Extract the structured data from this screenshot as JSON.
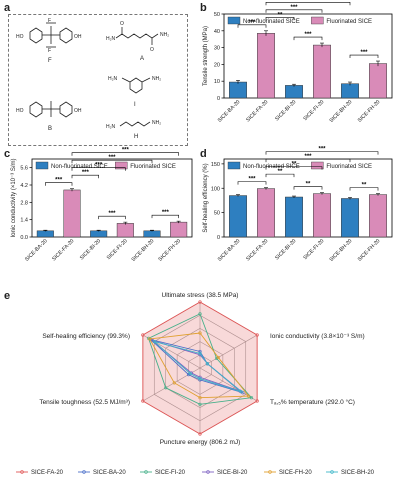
{
  "panels": {
    "a": "a",
    "b": "b",
    "c": "c",
    "d": "d",
    "e": "e"
  },
  "structures": {
    "labels": {
      "F": "F",
      "A": "A",
      "B": "B",
      "I": "I",
      "H": "H"
    },
    "groups": {
      "OH": "HO",
      "OH2": "OH",
      "CF3": "F",
      "NH2": "NH",
      "H2N": "H₂N",
      "NH2b": "NH₂",
      "O": "O"
    }
  },
  "colors": {
    "blue": "#2e7fc0",
    "pink": "#d98bb8",
    "black": "#000000"
  },
  "legend": {
    "non": "Non-fluorinated SICE",
    "flu": "Fluorinated SICE"
  },
  "chart_data": [
    {
      "id": "b",
      "type": "bar",
      "ylabel": "Tensile strength (MPa)",
      "ylim": [
        0,
        50
      ],
      "yticks": [
        0,
        10,
        20,
        30,
        40,
        50
      ],
      "categories": [
        "SICE-BA-20",
        "SICE-FA-20",
        "SICE-BI-20",
        "SICE-FI-20",
        "SICE-BH-20",
        "SICE-FH-20"
      ],
      "values": [
        9.5,
        38.5,
        7.5,
        31.5,
        8.5,
        20.5
      ],
      "errors": [
        1,
        1.5,
        0.7,
        1.2,
        1,
        1.5
      ],
      "kind": [
        "non",
        "flu",
        "non",
        "flu",
        "non",
        "flu"
      ],
      "significance": [
        {
          "from": 0,
          "to": 1,
          "label": "***",
          "level": 0
        },
        {
          "from": 1,
          "to": 2,
          "label": "**",
          "level": 1
        },
        {
          "from": 2,
          "to": 3,
          "label": "***",
          "level": 0
        },
        {
          "from": 1,
          "to": 3,
          "label": "***",
          "level": 2
        },
        {
          "from": 4,
          "to": 5,
          "label": "***",
          "level": 0
        },
        {
          "from": 1,
          "to": 4,
          "label": "***",
          "level": 3
        },
        {
          "from": 1,
          "to": 5,
          "label": "***",
          "level": 4
        }
      ]
    },
    {
      "id": "c",
      "type": "bar",
      "ylabel": "Ionic conductivity (×10⁻³ S/m)",
      "ylim": [
        0,
        6.3
      ],
      "yticks": [
        0,
        1.4,
        2.8,
        4.2,
        5.6
      ],
      "yticklabels": [
        "0.0",
        "1.4",
        "2.8",
        "4.2",
        "5.6"
      ],
      "categories": [
        "SICE-BA-20",
        "SICE-FA-20",
        "SICE-BI-20",
        "SICE-FI-20",
        "SICE-BH-20",
        "SICE-FH-20"
      ],
      "values": [
        0.5,
        3.8,
        0.5,
        1.1,
        0.5,
        1.2
      ],
      "errors": [
        0.05,
        0.1,
        0.05,
        0.1,
        0.05,
        0.08
      ],
      "kind": [
        "non",
        "flu",
        "non",
        "flu",
        "non",
        "flu"
      ],
      "significance": [
        {
          "from": 0,
          "to": 1,
          "label": "***",
          "level": 0
        },
        {
          "from": 1,
          "to": 2,
          "label": "***",
          "level": 1
        },
        {
          "from": 2,
          "to": 3,
          "label": "***",
          "level": 0
        },
        {
          "from": 1,
          "to": 3,
          "label": "***",
          "level": 2
        },
        {
          "from": 4,
          "to": 5,
          "label": "***",
          "level": 0
        },
        {
          "from": 1,
          "to": 4,
          "label": "***",
          "level": 3
        },
        {
          "from": 1,
          "to": 5,
          "label": "***",
          "level": 4
        }
      ]
    },
    {
      "id": "d",
      "type": "bar",
      "ylabel": "Self-healing efficiency (%)",
      "ylim": [
        0,
        160
      ],
      "yticks": [
        0,
        50,
        100,
        150
      ],
      "categories": [
        "SICE-BA-20",
        "SICE-FA-20",
        "SICE-BI-20",
        "SICE-FI-20",
        "SICE-BH-20",
        "SICE-FH-20"
      ],
      "values": [
        85,
        99.3,
        82,
        89,
        79,
        87
      ],
      "errors": [
        2,
        2,
        2,
        2,
        2,
        2
      ],
      "kind": [
        "non",
        "flu",
        "non",
        "flu",
        "non",
        "flu"
      ],
      "significance": [
        {
          "from": 0,
          "to": 1,
          "label": "***",
          "level": 0
        },
        {
          "from": 1,
          "to": 2,
          "label": "**",
          "level": 1
        },
        {
          "from": 2,
          "to": 3,
          "label": "**",
          "level": 0
        },
        {
          "from": 1,
          "to": 3,
          "label": "**",
          "level": 2
        },
        {
          "from": 4,
          "to": 5,
          "label": "**",
          "level": 0
        },
        {
          "from": 1,
          "to": 4,
          "label": "***",
          "level": 3
        },
        {
          "from": 1,
          "to": 5,
          "label": "***",
          "level": 4
        }
      ]
    },
    {
      "id": "e",
      "type": "radar",
      "axes": [
        "Ultimate stress (38.5 MPa)",
        "Ionic conductivity (3.8×10⁻³ S/m)",
        "Tₐ,₅% temperature (292.0 °C)",
        "Puncture energy (806.2 mJ)",
        "Tensile toughness (52.5 MJ/m³)",
        "Self-healing efficiency (99.3%)"
      ],
      "series": [
        {
          "name": "SICE-FA-20",
          "color": "#e05555",
          "values": [
            1,
            1,
            1,
            1,
            1,
            1
          ]
        },
        {
          "name": "SICE-BA-20",
          "color": "#4a6fc9",
          "values": [
            0.25,
            0.13,
            0.75,
            0.18,
            0.2,
            0.86
          ]
        },
        {
          "name": "SICE-FI-20",
          "color": "#46b08a",
          "values": [
            0.82,
            0.29,
            0.9,
            0.55,
            0.6,
            0.9
          ]
        },
        {
          "name": "SICE-BI-20",
          "color": "#7e63c2",
          "values": [
            0.2,
            0.13,
            0.7,
            0.14,
            0.15,
            0.83
          ]
        },
        {
          "name": "SICE-FH-20",
          "color": "#e0a030",
          "values": [
            0.53,
            0.32,
            0.85,
            0.45,
            0.45,
            0.88
          ]
        },
        {
          "name": "SICE-BH-20",
          "color": "#3cb6c8",
          "values": [
            0.22,
            0.13,
            0.72,
            0.16,
            0.17,
            0.8
          ]
        }
      ]
    }
  ]
}
